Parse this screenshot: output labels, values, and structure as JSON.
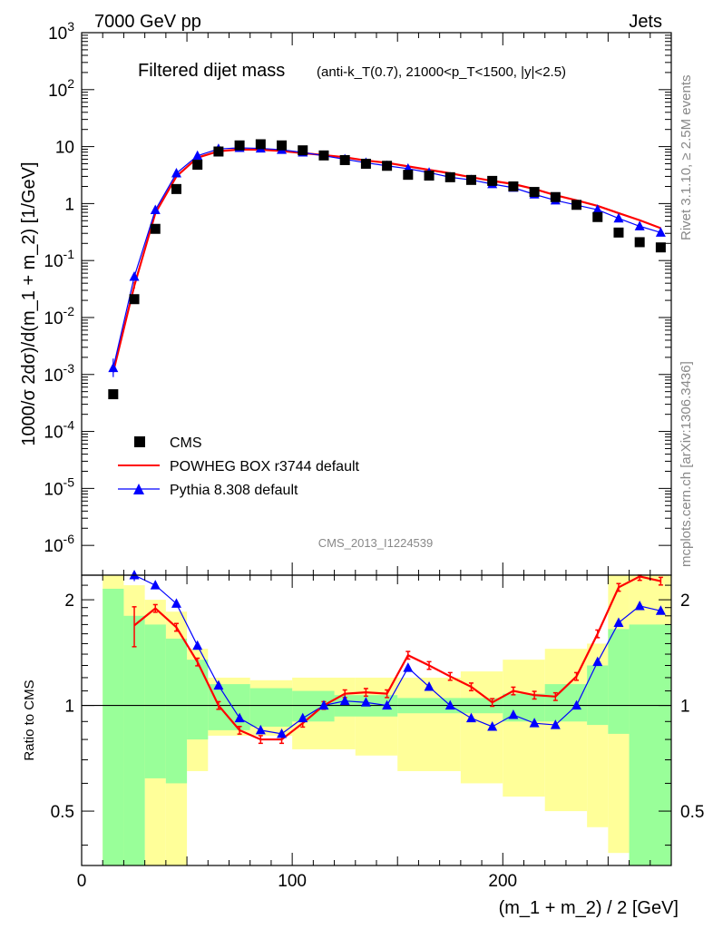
{
  "header": {
    "left": "7000 GeV pp",
    "right": "Jets"
  },
  "title": {
    "main": "Filtered dijet mass",
    "sub": "(anti-k_T(0.7), 21000<p_T<1500, |y|<2.5)"
  },
  "side_labels": {
    "rivet": "Rivet 3.1.10, ≥ 2.5M events",
    "mcplots": "mcplots.cern.ch [arXiv:1306.3436]"
  },
  "analysis_id": "CMS_2013_I1224539",
  "legend": {
    "data": "CMS",
    "mc1": "POWHEG BOX r3744 default",
    "mc2": "Pythia 8.308 default"
  },
  "colors": {
    "data": "#000000",
    "mc1": "#ff0000",
    "mc2": "#0000ff",
    "band_inner": "#99ff99",
    "band_outer": "#ffff99"
  },
  "chart_data": [
    {
      "type": "scatter",
      "panel": "main",
      "ylabel": "1000/σ 2dσ)/d(m_1 + m_2) [1/GeV]",
      "yscale": "log",
      "ylim": [
        3e-07,
        1000
      ],
      "xlim": [
        0,
        280
      ],
      "y_ticks": [
        "10^-6",
        "10^-5",
        "10^-4",
        "10^-3",
        "10^-2",
        "10^-1",
        "1",
        "10",
        "10^2",
        "10^3"
      ],
      "x": [
        15,
        25,
        35,
        45,
        55,
        65,
        75,
        85,
        95,
        105,
        115,
        125,
        135,
        145,
        155,
        165,
        175,
        185,
        195,
        205,
        215,
        225,
        235,
        245,
        255,
        265,
        275
      ],
      "series": [
        {
          "name": "CMS",
          "marker": "square",
          "values": [
            0.00045,
            0.021,
            0.36,
            1.8,
            4.8,
            8.2,
            10.5,
            11.0,
            10.5,
            8.6,
            7.0,
            5.8,
            5.0,
            4.6,
            3.2,
            3.1,
            2.9,
            2.6,
            2.5,
            2.0,
            1.6,
            1.3,
            0.95,
            0.58,
            0.31,
            0.21,
            0.17
          ]
        },
        {
          "name": "POWHEG BOX r3744 default",
          "marker": "line",
          "values": [
            0.0011,
            0.036,
            0.68,
            3.0,
            6.4,
            8.3,
            8.9,
            8.8,
            8.4,
            7.7,
            7.1,
            6.5,
            5.7,
            5.2,
            4.5,
            3.9,
            3.4,
            2.9,
            2.5,
            2.2,
            1.8,
            1.4,
            1.14,
            0.91,
            0.68,
            0.51,
            0.37
          ]
        },
        {
          "name": "Pythia 8.308 default",
          "marker": "triangle",
          "values": [
            0.0013,
            0.052,
            0.77,
            3.4,
            6.9,
            9.1,
            9.5,
            9.3,
            8.8,
            7.9,
            6.9,
            6.0,
            5.2,
            4.6,
            4.1,
            3.5,
            2.9,
            2.6,
            2.2,
            1.9,
            1.45,
            1.14,
            0.94,
            0.78,
            0.55,
            0.4,
            0.31
          ]
        }
      ]
    },
    {
      "type": "line",
      "panel": "ratio",
      "ylabel": "Ratio to CMS",
      "xlabel": "(m_1 + m_2) / 2 [GeV]",
      "yscale": "log",
      "ylim": [
        0.35,
        2.35
      ],
      "xlim": [
        0,
        280
      ],
      "y_ticks": [
        "0.5",
        "1",
        "2"
      ],
      "x_ticks": [
        "0",
        "100",
        "200"
      ],
      "x": [
        15,
        25,
        35,
        45,
        55,
        65,
        75,
        85,
        95,
        105,
        115,
        125,
        135,
        145,
        155,
        165,
        175,
        185,
        195,
        205,
        215,
        225,
        235,
        245,
        255,
        265,
        275
      ],
      "series": [
        {
          "name": "POWHEG BOX r3744 default",
          "values": [
            null,
            1.69,
            1.89,
            1.67,
            1.33,
            1.0,
            0.85,
            0.8,
            0.8,
            0.89,
            1.0,
            1.08,
            1.09,
            1.08,
            1.39,
            1.3,
            1.21,
            1.13,
            1.02,
            1.1,
            1.07,
            1.06,
            1.21,
            1.6,
            2.17,
            2.33,
            2.26
          ]
        },
        {
          "name": "Pythia 8.308 default",
          "values": [
            null,
            2.4,
            2.2,
            1.95,
            1.48,
            1.14,
            0.92,
            0.85,
            0.83,
            0.92,
            1.0,
            1.03,
            1.02,
            1.0,
            1.28,
            1.13,
            1.0,
            0.92,
            0.87,
            0.94,
            0.89,
            0.88,
            1.0,
            1.33,
            1.72,
            1.92,
            1.86
          ]
        }
      ],
      "bands": {
        "inner": [
          [
            10,
            20,
            0.35,
            2.15
          ],
          [
            20,
            30,
            0.35,
            1.8
          ],
          [
            30,
            40,
            0.62,
            1.7
          ],
          [
            40,
            50,
            0.6,
            1.55
          ],
          [
            50,
            60,
            0.8,
            1.35
          ],
          [
            60,
            80,
            0.85,
            1.15
          ],
          [
            80,
            100,
            0.87,
            1.12
          ],
          [
            100,
            120,
            0.9,
            1.1
          ],
          [
            120,
            150,
            0.93,
            1.07
          ],
          [
            150,
            200,
            0.95,
            1.05
          ],
          [
            200,
            220,
            0.9,
            1.08
          ],
          [
            220,
            240,
            0.9,
            1.15
          ],
          [
            240,
            250,
            0.88,
            1.3
          ],
          [
            250,
            260,
            0.83,
            1.65
          ],
          [
            260,
            280,
            0.35,
            1.7
          ]
        ],
        "outer": [
          [
            10,
            20,
            0.35,
            2.35
          ],
          [
            20,
            30,
            0.35,
            2.2
          ],
          [
            30,
            40,
            0.35,
            2.0
          ],
          [
            40,
            50,
            0.35,
            1.85
          ],
          [
            50,
            60,
            0.65,
            1.45
          ],
          [
            60,
            80,
            0.82,
            1.2
          ],
          [
            80,
            100,
            0.82,
            1.18
          ],
          [
            100,
            130,
            0.75,
            1.2
          ],
          [
            130,
            150,
            0.72,
            1.2
          ],
          [
            150,
            180,
            0.65,
            1.2
          ],
          [
            180,
            200,
            0.6,
            1.25
          ],
          [
            200,
            220,
            0.55,
            1.35
          ],
          [
            220,
            240,
            0.5,
            1.45
          ],
          [
            240,
            250,
            0.45,
            1.5
          ],
          [
            250,
            260,
            0.38,
            2.35
          ],
          [
            260,
            280,
            0.38,
            2.35
          ]
        ]
      }
    }
  ]
}
